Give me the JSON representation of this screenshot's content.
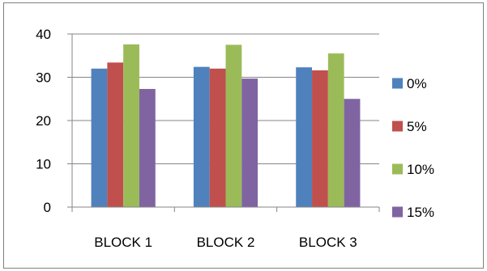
{
  "chart_data": {
    "type": "bar",
    "categories": [
      "BLOCK 1",
      "BLOCK 2",
      "BLOCK 3"
    ],
    "series": [
      {
        "name": "0%",
        "color": "#4f81bd",
        "values": [
          32.0,
          32.4,
          32.3
        ]
      },
      {
        "name": "5%",
        "color": "#c0504d",
        "values": [
          33.4,
          32.0,
          31.6
        ]
      },
      {
        "name": "10%",
        "color": "#9bbb59",
        "values": [
          37.6,
          37.5,
          35.5
        ]
      },
      {
        "name": "15%",
        "color": "#8064a2",
        "values": [
          27.3,
          29.7,
          25.0
        ]
      }
    ],
    "ylim": [
      0,
      40
    ],
    "yticks": [
      0,
      10,
      20,
      30,
      40
    ],
    "grid": true,
    "legend": "right"
  }
}
